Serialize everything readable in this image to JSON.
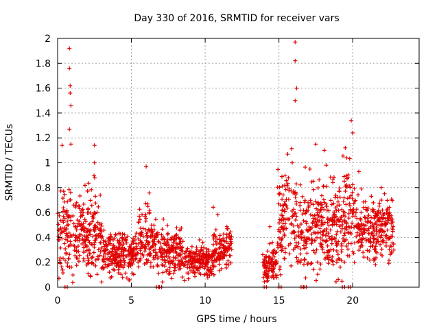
{
  "chart_data": {
    "type": "scatter",
    "title": "Day 330 of 2016, SRMTID for receiver vars",
    "xlabel": "GPS time / hours",
    "ylabel": "SRMTID / TECUs",
    "xlim": [
      0,
      24.5
    ],
    "ylim": [
      0,
      2
    ],
    "xticks": [
      "0",
      "5",
      "10",
      "15",
      "20"
    ],
    "yticks": [
      "0",
      "0.2",
      "0.4",
      "0.6",
      "0.8",
      "1",
      "1.2",
      "1.4",
      "1.6",
      "1.8",
      "2"
    ],
    "grid": true,
    "marker": "+",
    "color": "#e00000",
    "series": [
      {
        "name": "vars",
        "segments": [
          {
            "start": 0.0,
            "end": 3.0,
            "base": 0.43,
            "spread": 0.17
          },
          {
            "start": 3.0,
            "end": 5.5,
            "base": 0.27,
            "spread": 0.09
          },
          {
            "start": 5.5,
            "end": 6.7,
            "base": 0.38,
            "spread": 0.13
          },
          {
            "start": 6.7,
            "end": 8.5,
            "base": 0.29,
            "spread": 0.1
          },
          {
            "start": 8.5,
            "end": 10.5,
            "base": 0.21,
            "spread": 0.06
          },
          {
            "start": 10.5,
            "end": 11.8,
            "base": 0.28,
            "spread": 0.09
          },
          {
            "start": 13.9,
            "end": 14.9,
            "base": 0.17,
            "spread": 0.07
          },
          {
            "start": 14.9,
            "end": 16.2,
            "base": 0.53,
            "spread": 0.2
          },
          {
            "start": 16.2,
            "end": 19.3,
            "base": 0.48,
            "spread": 0.18
          },
          {
            "start": 19.3,
            "end": 20.2,
            "base": 0.58,
            "spread": 0.2
          },
          {
            "start": 20.2,
            "end": 22.8,
            "base": 0.47,
            "spread": 0.12
          }
        ],
        "spikes": [
          [
            0.8,
            1.92
          ],
          [
            0.8,
            1.76
          ],
          [
            0.85,
            1.62
          ],
          [
            0.85,
            1.56
          ],
          [
            0.9,
            1.46
          ],
          [
            0.8,
            1.27
          ],
          [
            0.9,
            1.15
          ],
          [
            0.3,
            1.14
          ],
          [
            2.5,
            1.14
          ],
          [
            2.5,
            1.0
          ],
          [
            6.0,
            0.97
          ],
          [
            16.1,
            1.97
          ],
          [
            16.1,
            1.82
          ],
          [
            16.2,
            1.6
          ],
          [
            16.1,
            1.5
          ],
          [
            17.5,
            1.15
          ],
          [
            19.5,
            1.12
          ],
          [
            19.9,
            1.34
          ],
          [
            20.0,
            1.24
          ],
          [
            15.9,
            1.0
          ],
          [
            17.1,
            0.95
          ],
          [
            18.2,
            0.98
          ]
        ],
        "zeros": [
          0.5,
          6.7,
          6.9,
          14.0,
          15.0,
          16.5,
          16.7,
          19.3,
          19.7
        ]
      }
    ]
  }
}
